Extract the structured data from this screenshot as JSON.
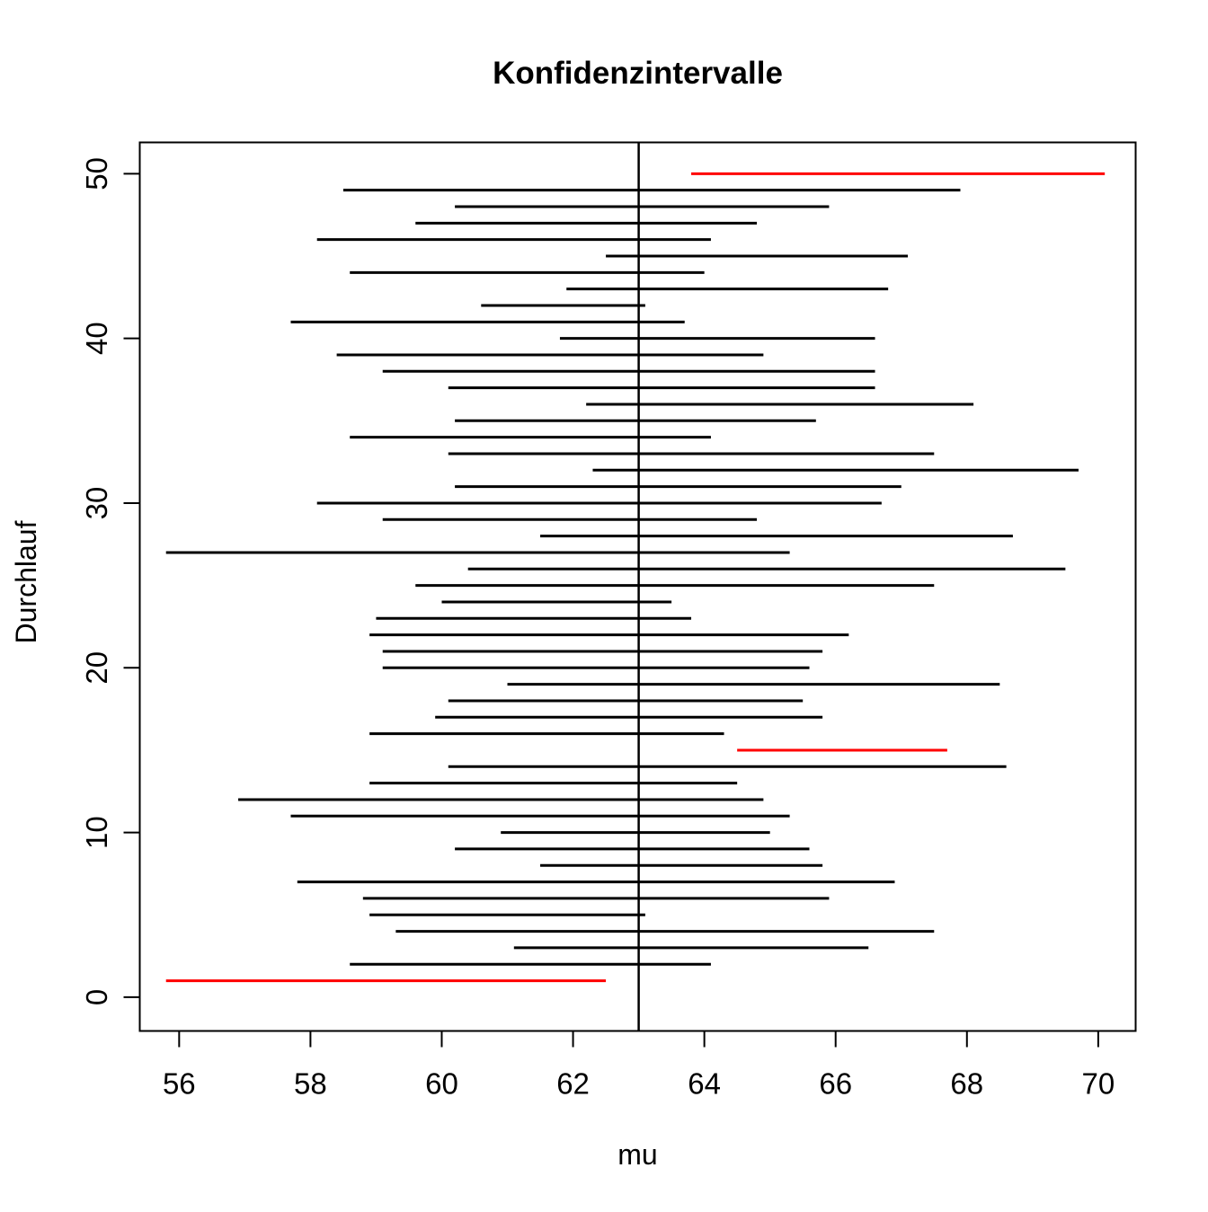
{
  "colors": {
    "interval_contains_mu": "#000000",
    "interval_misses_mu": "#FF0000",
    "axis": "#000000",
    "background": "#FFFFFF"
  },
  "chart_data": {
    "type": "line",
    "subtype": "horizontal-interval-plot",
    "title": "Konfidenzintervalle",
    "xlabel": "mu",
    "ylabel": "Durchlauf",
    "xlim": [
      55.4,
      70.57
    ],
    "ylim": [
      -2.05,
      51.9
    ],
    "x_ticks": [
      56,
      58,
      60,
      62,
      64,
      66,
      68,
      70
    ],
    "y_ticks": [
      0,
      10,
      20,
      30,
      40,
      50
    ],
    "grid": false,
    "legend": null,
    "true_mu": 63,
    "intervals": [
      {
        "run": 1,
        "lower": 55.8,
        "upper": 62.5,
        "contains_mu": false
      },
      {
        "run": 2,
        "lower": 58.6,
        "upper": 64.1,
        "contains_mu": true
      },
      {
        "run": 3,
        "lower": 61.1,
        "upper": 66.5,
        "contains_mu": true
      },
      {
        "run": 4,
        "lower": 59.3,
        "upper": 67.5,
        "contains_mu": true
      },
      {
        "run": 5,
        "lower": 58.9,
        "upper": 63.1,
        "contains_mu": true
      },
      {
        "run": 6,
        "lower": 58.8,
        "upper": 65.9,
        "contains_mu": true
      },
      {
        "run": 7,
        "lower": 57.8,
        "upper": 66.9,
        "contains_mu": true
      },
      {
        "run": 8,
        "lower": 61.5,
        "upper": 65.8,
        "contains_mu": true
      },
      {
        "run": 9,
        "lower": 60.2,
        "upper": 65.6,
        "contains_mu": true
      },
      {
        "run": 10,
        "lower": 60.9,
        "upper": 65.0,
        "contains_mu": true
      },
      {
        "run": 11,
        "lower": 57.7,
        "upper": 65.3,
        "contains_mu": true
      },
      {
        "run": 12,
        "lower": 56.9,
        "upper": 64.9,
        "contains_mu": true
      },
      {
        "run": 13,
        "lower": 58.9,
        "upper": 64.5,
        "contains_mu": true
      },
      {
        "run": 14,
        "lower": 60.1,
        "upper": 68.6,
        "contains_mu": true
      },
      {
        "run": 15,
        "lower": 64.5,
        "upper": 67.7,
        "contains_mu": false
      },
      {
        "run": 16,
        "lower": 58.9,
        "upper": 64.3,
        "contains_mu": true
      },
      {
        "run": 17,
        "lower": 59.9,
        "upper": 65.8,
        "contains_mu": true
      },
      {
        "run": 18,
        "lower": 60.1,
        "upper": 65.5,
        "contains_mu": true
      },
      {
        "run": 19,
        "lower": 61.0,
        "upper": 68.5,
        "contains_mu": true
      },
      {
        "run": 20,
        "lower": 59.1,
        "upper": 65.6,
        "contains_mu": true
      },
      {
        "run": 21,
        "lower": 59.1,
        "upper": 65.8,
        "contains_mu": true
      },
      {
        "run": 22,
        "lower": 58.9,
        "upper": 66.2,
        "contains_mu": true
      },
      {
        "run": 23,
        "lower": 59.0,
        "upper": 63.8,
        "contains_mu": true
      },
      {
        "run": 24,
        "lower": 60.0,
        "upper": 63.5,
        "contains_mu": true
      },
      {
        "run": 25,
        "lower": 59.6,
        "upper": 67.5,
        "contains_mu": true
      },
      {
        "run": 26,
        "lower": 60.4,
        "upper": 69.5,
        "contains_mu": true
      },
      {
        "run": 27,
        "lower": 55.8,
        "upper": 65.3,
        "contains_mu": true
      },
      {
        "run": 28,
        "lower": 61.5,
        "upper": 68.7,
        "contains_mu": true
      },
      {
        "run": 29,
        "lower": 59.1,
        "upper": 64.8,
        "contains_mu": true
      },
      {
        "run": 30,
        "lower": 58.1,
        "upper": 66.7,
        "contains_mu": true
      },
      {
        "run": 31,
        "lower": 60.2,
        "upper": 67.0,
        "contains_mu": true
      },
      {
        "run": 32,
        "lower": 62.3,
        "upper": 69.7,
        "contains_mu": true
      },
      {
        "run": 33,
        "lower": 60.1,
        "upper": 67.5,
        "contains_mu": true
      },
      {
        "run": 34,
        "lower": 58.6,
        "upper": 64.1,
        "contains_mu": true
      },
      {
        "run": 35,
        "lower": 60.2,
        "upper": 65.7,
        "contains_mu": true
      },
      {
        "run": 36,
        "lower": 62.2,
        "upper": 68.1,
        "contains_mu": true
      },
      {
        "run": 37,
        "lower": 60.1,
        "upper": 66.6,
        "contains_mu": true
      },
      {
        "run": 38,
        "lower": 59.1,
        "upper": 66.6,
        "contains_mu": true
      },
      {
        "run": 39,
        "lower": 58.4,
        "upper": 64.9,
        "contains_mu": true
      },
      {
        "run": 40,
        "lower": 61.8,
        "upper": 66.6,
        "contains_mu": true
      },
      {
        "run": 41,
        "lower": 57.7,
        "upper": 63.7,
        "contains_mu": true
      },
      {
        "run": 42,
        "lower": 60.6,
        "upper": 63.1,
        "contains_mu": true
      },
      {
        "run": 43,
        "lower": 61.9,
        "upper": 66.8,
        "contains_mu": true
      },
      {
        "run": 44,
        "lower": 58.6,
        "upper": 64.0,
        "contains_mu": true
      },
      {
        "run": 45,
        "lower": 62.5,
        "upper": 67.1,
        "contains_mu": true
      },
      {
        "run": 46,
        "lower": 58.1,
        "upper": 64.1,
        "contains_mu": true
      },
      {
        "run": 47,
        "lower": 59.6,
        "upper": 64.8,
        "contains_mu": true
      },
      {
        "run": 48,
        "lower": 60.2,
        "upper": 65.9,
        "contains_mu": true
      },
      {
        "run": 49,
        "lower": 58.5,
        "upper": 67.9,
        "contains_mu": true
      },
      {
        "run": 50,
        "lower": 63.8,
        "upper": 70.1,
        "contains_mu": false
      }
    ]
  }
}
